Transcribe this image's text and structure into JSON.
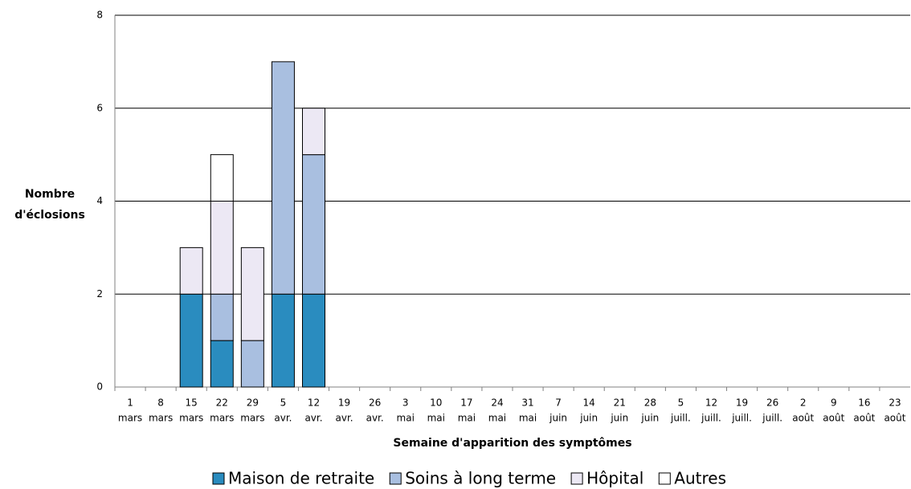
{
  "chart_data": {
    "type": "stacked-bar",
    "ylabel": [
      "Nombre",
      "d'éclosions"
    ],
    "xlabel": "Semaine d'apparition des symptômes",
    "categories": [
      [
        "1",
        "mars"
      ],
      [
        "8",
        "mars"
      ],
      [
        "15",
        "mars"
      ],
      [
        "22",
        "mars"
      ],
      [
        "29",
        "mars"
      ],
      [
        "5",
        "avr."
      ],
      [
        "12",
        "avr."
      ],
      [
        "19",
        "avr."
      ],
      [
        "26",
        "avr."
      ],
      [
        "3",
        "mai"
      ],
      [
        "10",
        "mai"
      ],
      [
        "17",
        "mai"
      ],
      [
        "24",
        "mai"
      ],
      [
        "31",
        "mai"
      ],
      [
        "7",
        "juin"
      ],
      [
        "14",
        "juin"
      ],
      [
        "21",
        "juin"
      ],
      [
        "28",
        "juin"
      ],
      [
        "5",
        "juill."
      ],
      [
        "12",
        "juill."
      ],
      [
        "19",
        "juill."
      ],
      [
        "26",
        "juill."
      ],
      [
        "2",
        "août"
      ],
      [
        "9",
        "août"
      ],
      [
        "16",
        "août"
      ],
      [
        "23",
        "août"
      ]
    ],
    "series": [
      {
        "name": "Maison de retraite",
        "color": "#2a8cbf",
        "values": [
          0,
          0,
          2,
          1,
          0,
          2,
          2,
          0,
          0,
          0,
          0,
          0,
          0,
          0,
          0,
          0,
          0,
          0,
          0,
          0,
          0,
          0,
          0,
          0,
          0,
          0
        ]
      },
      {
        "name": "Soins à long terme",
        "color": "#a9bfe0",
        "values": [
          0,
          0,
          0,
          1,
          1,
          5,
          3,
          0,
          0,
          0,
          0,
          0,
          0,
          0,
          0,
          0,
          0,
          0,
          0,
          0,
          0,
          0,
          0,
          0,
          0,
          0
        ]
      },
      {
        "name": "Hôpital",
        "color": "#ece8f4",
        "values": [
          0,
          0,
          1,
          2,
          2,
          0,
          1,
          0,
          0,
          0,
          0,
          0,
          0,
          0,
          0,
          0,
          0,
          0,
          0,
          0,
          0,
          0,
          0,
          0,
          0,
          0
        ]
      },
      {
        "name": "Autres",
        "color": "#ffffff",
        "values": [
          0,
          0,
          0,
          1,
          0,
          0,
          0,
          0,
          0,
          0,
          0,
          0,
          0,
          0,
          0,
          0,
          0,
          0,
          0,
          0,
          0,
          0,
          0,
          0,
          0,
          0
        ]
      }
    ],
    "ylim": [
      0,
      8
    ],
    "yticks": [
      0,
      2,
      4,
      6,
      8
    ],
    "grid": true
  }
}
